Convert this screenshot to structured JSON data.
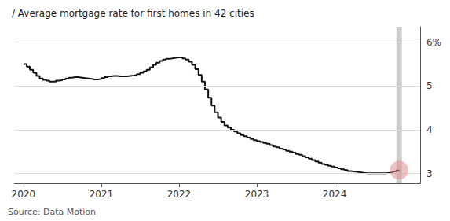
{
  "chart_data": {
    "type": "step",
    "title": "/ Average mortgage rate for first homes in 42 cities",
    "annotations": [
      "Source: Data Motion"
    ],
    "color": "#111111",
    "grid": true,
    "xlim": [
      2019.88,
      2025.1
    ],
    "xticks": [
      2020,
      2021,
      2022,
      2023,
      2024
    ],
    "ylim": [
      2.78,
      6.35
    ],
    "yticks": [
      3,
      4,
      5,
      {
        "value": 6,
        "label": "6%"
      }
    ],
    "shaded_span": {
      "x": [
        2024.795,
        2024.865
      ],
      "color": "#c8c8c8"
    },
    "highlight": {
      "x": 2024.83,
      "y": 3.08,
      "color": "#e09090"
    },
    "x": [
      2020.0,
      2020.042,
      2020.083,
      2020.125,
      2020.167,
      2020.208,
      2020.25,
      2020.292,
      2020.333,
      2020.375,
      2020.417,
      2020.458,
      2020.5,
      2020.542,
      2020.583,
      2020.625,
      2020.667,
      2020.708,
      2020.75,
      2020.792,
      2020.833,
      2020.875,
      2020.917,
      2020.958,
      2021.0,
      2021.042,
      2021.083,
      2021.125,
      2021.167,
      2021.208,
      2021.25,
      2021.292,
      2021.333,
      2021.375,
      2021.417,
      2021.458,
      2021.5,
      2021.542,
      2021.583,
      2021.625,
      2021.667,
      2021.708,
      2021.75,
      2021.792,
      2021.833,
      2021.875,
      2021.917,
      2021.958,
      2022.0,
      2022.042,
      2022.083,
      2022.125,
      2022.167,
      2022.208,
      2022.25,
      2022.292,
      2022.333,
      2022.375,
      2022.417,
      2022.458,
      2022.5,
      2022.542,
      2022.583,
      2022.625,
      2022.667,
      2022.708,
      2022.75,
      2022.792,
      2022.833,
      2022.875,
      2022.917,
      2022.958,
      2023.0,
      2023.042,
      2023.083,
      2023.125,
      2023.167,
      2023.208,
      2023.25,
      2023.292,
      2023.333,
      2023.375,
      2023.417,
      2023.458,
      2023.5,
      2023.542,
      2023.583,
      2023.625,
      2023.667,
      2023.708,
      2023.75,
      2023.792,
      2023.833,
      2023.875,
      2023.917,
      2023.958,
      2024.0,
      2024.042,
      2024.083,
      2024.125,
      2024.167,
      2024.208,
      2024.25,
      2024.292,
      2024.333,
      2024.375,
      2024.417,
      2024.458,
      2024.5,
      2024.542,
      2024.583,
      2024.625,
      2024.667,
      2024.708,
      2024.75,
      2024.792,
      2024.833
    ],
    "values": [
      5.5,
      5.44,
      5.37,
      5.3,
      5.23,
      5.17,
      5.14,
      5.12,
      5.1,
      5.1,
      5.12,
      5.13,
      5.15,
      5.17,
      5.19,
      5.2,
      5.2,
      5.19,
      5.18,
      5.17,
      5.16,
      5.15,
      5.15,
      5.16,
      5.18,
      5.2,
      5.22,
      5.23,
      5.23,
      5.22,
      5.22,
      5.22,
      5.23,
      5.24,
      5.25,
      5.27,
      5.3,
      5.33,
      5.37,
      5.42,
      5.48,
      5.53,
      5.57,
      5.6,
      5.62,
      5.63,
      5.64,
      5.65,
      5.65,
      5.63,
      5.6,
      5.55,
      5.48,
      5.38,
      5.25,
      5.1,
      4.92,
      4.73,
      4.55,
      4.4,
      4.28,
      4.18,
      4.1,
      4.05,
      4.0,
      3.96,
      3.92,
      3.88,
      3.85,
      3.82,
      3.79,
      3.76,
      3.74,
      3.72,
      3.7,
      3.68,
      3.65,
      3.62,
      3.6,
      3.57,
      3.55,
      3.52,
      3.5,
      3.48,
      3.45,
      3.43,
      3.4,
      3.37,
      3.34,
      3.31,
      3.28,
      3.25,
      3.22,
      3.2,
      3.18,
      3.16,
      3.14,
      3.12,
      3.1,
      3.08,
      3.06,
      3.05,
      3.04,
      3.03,
      3.02,
      3.01,
      3.01,
      3.01,
      3.01,
      3.01,
      3.01,
      3.01,
      3.02,
      3.03,
      3.05,
      3.07,
      3.08
    ]
  }
}
